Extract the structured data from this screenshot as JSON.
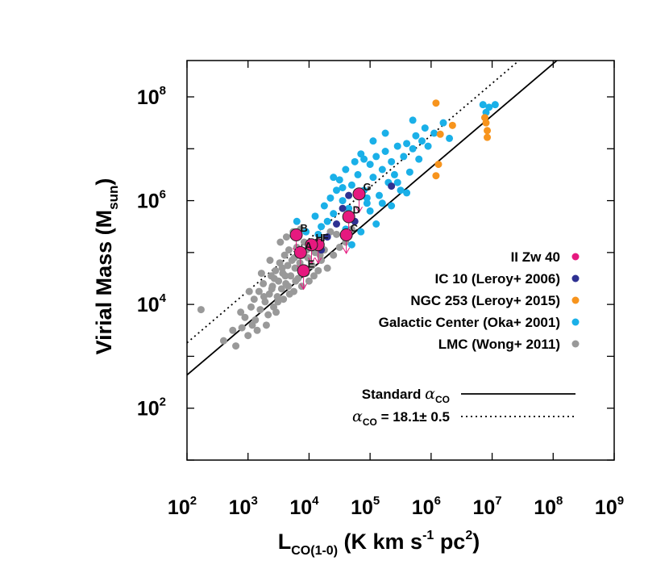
{
  "chart_data": {
    "type": "scatter",
    "xlabel": {
      "main": "L",
      "sub": "CO(1-0)",
      "units_pre": " (K km s",
      "units_exp1": "-1",
      "units_mid": " pc",
      "units_exp2": "2",
      "units_post": ")"
    },
    "ylabel": {
      "main": "Virial Mass (M",
      "sub": "sun",
      "post": ")"
    },
    "x_log10_range": [
      2,
      9
    ],
    "y_log10_range": [
      1.0,
      8.7
    ],
    "x_ticks": [
      {
        "base": "10",
        "exp": "2",
        "v": 2
      },
      {
        "base": "10",
        "exp": "3",
        "v": 3
      },
      {
        "base": "10",
        "exp": "4",
        "v": 4
      },
      {
        "base": "10",
        "exp": "5",
        "v": 5
      },
      {
        "base": "10",
        "exp": "6",
        "v": 6
      },
      {
        "base": "10",
        "exp": "7",
        "v": 7
      },
      {
        "base": "10",
        "exp": "8",
        "v": 8
      },
      {
        "base": "10",
        "exp": "9",
        "v": 9
      }
    ],
    "y_ticks": [
      {
        "base": "10",
        "exp": "2",
        "v": 2
      },
      {
        "base": "10",
        "exp": "4",
        "v": 4
      },
      {
        "base": "10",
        "exp": "6",
        "v": 6
      },
      {
        "base": "10",
        "exp": "8",
        "v": 8
      }
    ],
    "scale": "log-log",
    "grid": false,
    "legend_position": "bottom-right",
    "lines": [
      {
        "name": "Standard",
        "symbol": "α",
        "sub": "CO",
        "style": "solid",
        "log_offset": 0.64
      },
      {
        "name": "",
        "symbol": "α",
        "sub": "CO",
        "post": " = 18.1± 0.5",
        "style": "dotted",
        "log_offset": 1.26
      }
    ],
    "series": [
      {
        "name": "II Zw 40",
        "color": "#e6197f",
        "points": [
          {
            "label": "A",
            "x": 3.86,
            "y": 5.0
          },
          {
            "label": "B",
            "x": 3.79,
            "y": 5.34
          },
          {
            "label": "C",
            "x": 4.61,
            "y": 5.34
          },
          {
            "label": "D",
            "x": 4.65,
            "y": 5.69
          },
          {
            "label": "E",
            "x": 3.91,
            "y": 4.65
          },
          {
            "label": "F",
            "x": 4.15,
            "y": 5.15
          },
          {
            "label": "G",
            "x": 4.82,
            "y": 6.13
          },
          {
            "label": "H",
            "x": 4.04,
            "y": 5.15
          }
        ]
      },
      {
        "name": "IC 10 (Leroy+ 2006)",
        "color": "#2e3192",
        "points": [
          {
            "x": 4.2,
            "y": 5.05
          },
          {
            "x": 4.55,
            "y": 5.85
          },
          {
            "x": 4.45,
            "y": 5.55
          },
          {
            "x": 4.3,
            "y": 5.3
          },
          {
            "x": 4.65,
            "y": 6.1
          },
          {
            "x": 5.35,
            "y": 6.28
          },
          {
            "x": 4.05,
            "y": 5.2
          },
          {
            "x": 4.75,
            "y": 5.6
          }
        ]
      },
      {
        "name": "NGC 253 (Leroy+ 2015)",
        "color": "#f7941d",
        "points": [
          {
            "x": 6.08,
            "y": 7.88
          },
          {
            "x": 6.15,
            "y": 7.28
          },
          {
            "x": 6.08,
            "y": 6.48
          },
          {
            "x": 6.35,
            "y": 7.45
          },
          {
            "x": 6.9,
            "y": 7.5
          },
          {
            "x": 6.92,
            "y": 7.35
          },
          {
            "x": 6.92,
            "y": 7.22
          },
          {
            "x": 6.88,
            "y": 7.6
          },
          {
            "x": 6.12,
            "y": 6.7
          }
        ]
      },
      {
        "name": "Galactic Center (Oka+ 2001)",
        "color": "#1ab0e8",
        "points": [
          {
            "x": 3.8,
            "y": 5.6
          },
          {
            "x": 3.95,
            "y": 5.4
          },
          {
            "x": 4.1,
            "y": 5.7
          },
          {
            "x": 4.2,
            "y": 5.5
          },
          {
            "x": 4.25,
            "y": 5.9
          },
          {
            "x": 4.35,
            "y": 6.05
          },
          {
            "x": 4.4,
            "y": 5.75
          },
          {
            "x": 4.45,
            "y": 6.2
          },
          {
            "x": 4.5,
            "y": 6.4
          },
          {
            "x": 4.55,
            "y": 6.0
          },
          {
            "x": 4.6,
            "y": 6.6
          },
          {
            "x": 4.7,
            "y": 6.3
          },
          {
            "x": 4.75,
            "y": 6.75
          },
          {
            "x": 4.8,
            "y": 6.5
          },
          {
            "x": 4.85,
            "y": 6.9
          },
          {
            "x": 4.9,
            "y": 6.2
          },
          {
            "x": 4.95,
            "y": 5.95
          },
          {
            "x": 5.0,
            "y": 6.7
          },
          {
            "x": 5.05,
            "y": 6.45
          },
          {
            "x": 5.1,
            "y": 6.85
          },
          {
            "x": 5.15,
            "y": 6.1
          },
          {
            "x": 5.2,
            "y": 6.6
          },
          {
            "x": 5.25,
            "y": 6.95
          },
          {
            "x": 5.3,
            "y": 6.35
          },
          {
            "x": 5.35,
            "y": 6.75
          },
          {
            "x": 5.4,
            "y": 6.5
          },
          {
            "x": 5.45,
            "y": 7.05
          },
          {
            "x": 5.5,
            "y": 6.2
          },
          {
            "x": 5.55,
            "y": 6.85
          },
          {
            "x": 5.6,
            "y": 7.1
          },
          {
            "x": 5.65,
            "y": 6.55
          },
          {
            "x": 5.7,
            "y": 7.0
          },
          {
            "x": 5.75,
            "y": 7.25
          },
          {
            "x": 5.8,
            "y": 6.8
          },
          {
            "x": 5.85,
            "y": 7.15
          },
          {
            "x": 5.9,
            "y": 7.4
          },
          {
            "x": 5.95,
            "y": 7.05
          },
          {
            "x": 6.05,
            "y": 7.3
          },
          {
            "x": 6.2,
            "y": 7.5
          },
          {
            "x": 6.3,
            "y": 7.2
          },
          {
            "x": 4.15,
            "y": 5.35
          },
          {
            "x": 4.3,
            "y": 5.6
          },
          {
            "x": 4.6,
            "y": 5.45
          },
          {
            "x": 4.7,
            "y": 5.15
          },
          {
            "x": 4.85,
            "y": 5.4
          },
          {
            "x": 5.0,
            "y": 5.8
          },
          {
            "x": 5.1,
            "y": 5.55
          },
          {
            "x": 5.2,
            "y": 5.95
          },
          {
            "x": 5.35,
            "y": 5.9
          },
          {
            "x": 5.45,
            "y": 6.35
          },
          {
            "x": 5.6,
            "y": 6.15
          },
          {
            "x": 6.85,
            "y": 7.85
          },
          {
            "x": 6.95,
            "y": 7.8
          },
          {
            "x": 7.05,
            "y": 7.85
          },
          {
            "x": 6.9,
            "y": 7.7
          },
          {
            "x": 4.4,
            "y": 6.45
          },
          {
            "x": 4.9,
            "y": 6.8
          },
          {
            "x": 5.05,
            "y": 7.15
          },
          {
            "x": 5.25,
            "y": 7.3
          },
          {
            "x": 5.7,
            "y": 7.55
          },
          {
            "x": 4.55,
            "y": 6.25
          },
          {
            "x": 4.65,
            "y": 5.85
          },
          {
            "x": 4.95,
            "y": 6.05
          }
        ]
      },
      {
        "name": "LMC (Wong+ 2011)",
        "color": "#999999",
        "points": [
          {
            "x": 2.23,
            "y": 3.9
          },
          {
            "x": 2.6,
            "y": 3.3
          },
          {
            "x": 2.75,
            "y": 3.5
          },
          {
            "x": 2.8,
            "y": 3.2
          },
          {
            "x": 2.9,
            "y": 3.55
          },
          {
            "x": 2.95,
            "y": 3.75
          },
          {
            "x": 3.0,
            "y": 3.4
          },
          {
            "x": 3.05,
            "y": 3.95
          },
          {
            "x": 3.1,
            "y": 4.1
          },
          {
            "x": 3.12,
            "y": 3.7
          },
          {
            "x": 3.18,
            "y": 4.25
          },
          {
            "x": 3.2,
            "y": 3.9
          },
          {
            "x": 3.25,
            "y": 4.4
          },
          {
            "x": 3.28,
            "y": 4.05
          },
          {
            "x": 3.3,
            "y": 3.6
          },
          {
            "x": 3.35,
            "y": 4.2
          },
          {
            "x": 3.38,
            "y": 4.55
          },
          {
            "x": 3.4,
            "y": 4.35
          },
          {
            "x": 3.42,
            "y": 3.95
          },
          {
            "x": 3.45,
            "y": 4.65
          },
          {
            "x": 3.48,
            "y": 4.15
          },
          {
            "x": 3.5,
            "y": 4.45
          },
          {
            "x": 3.52,
            "y": 4.8
          },
          {
            "x": 3.55,
            "y": 4.3
          },
          {
            "x": 3.57,
            "y": 4.6
          },
          {
            "x": 3.6,
            "y": 4.95
          },
          {
            "x": 3.62,
            "y": 4.4
          },
          {
            "x": 3.65,
            "y": 4.75
          },
          {
            "x": 3.67,
            "y": 5.05
          },
          {
            "x": 3.7,
            "y": 4.55
          },
          {
            "x": 3.72,
            "y": 4.85
          },
          {
            "x": 3.75,
            "y": 4.25
          },
          {
            "x": 3.77,
            "y": 4.7
          },
          {
            "x": 3.8,
            "y": 5.1
          },
          {
            "x": 3.82,
            "y": 4.5
          },
          {
            "x": 3.85,
            "y": 4.8
          },
          {
            "x": 3.88,
            "y": 4.35
          },
          {
            "x": 3.9,
            "y": 4.95
          },
          {
            "x": 3.92,
            "y": 5.2
          },
          {
            "x": 3.95,
            "y": 4.6
          },
          {
            "x": 3.98,
            "y": 4.9
          },
          {
            "x": 4.0,
            "y": 4.45
          },
          {
            "x": 4.05,
            "y": 4.75
          },
          {
            "x": 4.1,
            "y": 5.0
          },
          {
            "x": 4.15,
            "y": 4.65
          },
          {
            "x": 4.2,
            "y": 4.85
          },
          {
            "x": 4.25,
            "y": 5.05
          },
          {
            "x": 4.3,
            "y": 4.7
          },
          {
            "x": 4.4,
            "y": 4.95
          },
          {
            "x": 4.5,
            "y": 5.1
          },
          {
            "x": 4.6,
            "y": 5.2
          },
          {
            "x": 3.15,
            "y": 3.5
          },
          {
            "x": 3.33,
            "y": 3.8
          },
          {
            "x": 3.46,
            "y": 3.85
          },
          {
            "x": 3.58,
            "y": 4.1
          },
          {
            "x": 3.68,
            "y": 4.2
          },
          {
            "x": 3.78,
            "y": 4.45
          },
          {
            "x": 2.88,
            "y": 3.85
          },
          {
            "x": 3.02,
            "y": 4.25
          },
          {
            "x": 3.22,
            "y": 4.6
          },
          {
            "x": 3.36,
            "y": 4.85
          },
          {
            "x": 3.53,
            "y": 5.2
          },
          {
            "x": 3.63,
            "y": 5.3
          },
          {
            "x": 3.74,
            "y": 5.4
          },
          {
            "x": 3.86,
            "y": 5.45
          },
          {
            "x": 4.35,
            "y": 5.4
          },
          {
            "x": 4.45,
            "y": 5.35
          },
          {
            "x": 4.7,
            "y": 5.45
          },
          {
            "x": 3.07,
            "y": 3.6
          },
          {
            "x": 3.43,
            "y": 4.5
          },
          {
            "x": 3.56,
            "y": 4.7
          },
          {
            "x": 3.66,
            "y": 4.35
          },
          {
            "x": 3.76,
            "y": 4.9
          },
          {
            "x": 3.87,
            "y": 4.65
          },
          {
            "x": 3.96,
            "y": 5.05
          },
          {
            "x": 4.08,
            "y": 4.55
          },
          {
            "x": 4.18,
            "y": 4.95
          },
          {
            "x": 3.26,
            "y": 4.15
          },
          {
            "x": 3.39,
            "y": 4.3
          },
          {
            "x": 3.49,
            "y": 4.05
          },
          {
            "x": 3.61,
            "y": 4.55
          }
        ]
      }
    ]
  }
}
